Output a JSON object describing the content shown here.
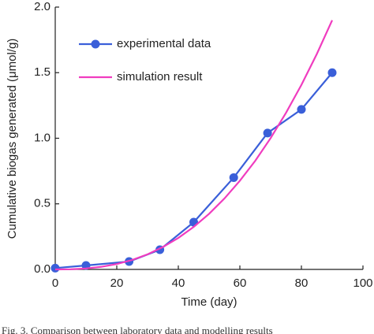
{
  "chart_data": {
    "type": "line",
    "xlabel": "Time (day)",
    "ylabel": "Cumulative  biogas generated (μmol/g)",
    "caption": "Fig. 3. Comparison between laboratory data and modelling results",
    "xlim": [
      0,
      100
    ],
    "xticks": [
      0,
      20,
      40,
      60,
      80,
      100
    ],
    "ylim": [
      0,
      2.0
    ],
    "yticks": [
      {
        "value": 0,
        "label": "0.0"
      },
      {
        "value": 0.5,
        "label": "0.5"
      },
      {
        "value": 1.0,
        "label": "1.0"
      },
      {
        "value": 1.5,
        "label": "1.5"
      },
      {
        "value": 2.0,
        "label": "2.0"
      }
    ],
    "legend": "upper left",
    "series": [
      {
        "name": "experimental data",
        "color": "#3a5fd9",
        "markers": true,
        "x": [
          0,
          10,
          24,
          34,
          45,
          58,
          69,
          80,
          90
        ],
        "values": [
          0.01,
          0.03,
          0.06,
          0.15,
          0.36,
          0.7,
          1.04,
          1.22,
          1.5
        ]
      },
      {
        "name": "simulation result",
        "color": "#f03cbf",
        "markers": false,
        "x": [
          0,
          5,
          10,
          15,
          20,
          25,
          30,
          35,
          40,
          45,
          50,
          55,
          60,
          65,
          70,
          75,
          80,
          85,
          90
        ],
        "values": [
          0,
          0.001,
          0.007,
          0.02,
          0.041,
          0.072,
          0.115,
          0.171,
          0.24,
          0.324,
          0.424,
          0.541,
          0.676,
          0.828,
          1.001,
          1.194,
          1.407,
          1.642,
          1.9
        ]
      }
    ]
  }
}
